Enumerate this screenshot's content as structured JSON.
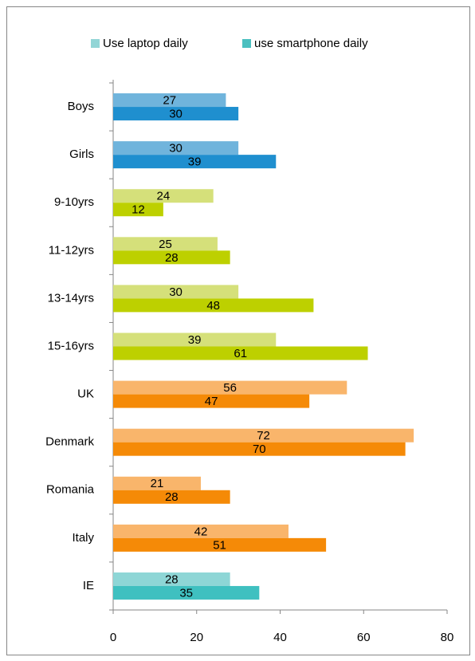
{
  "chart_data": {
    "type": "bar",
    "orientation": "horizontal",
    "categories": [
      "Boys",
      "Girls",
      "9-10yrs",
      "11-12yrs",
      "13-14yrs",
      "15-16yrs",
      "UK",
      "Denmark",
      "Romania",
      "Italy",
      "IE"
    ],
    "series": [
      {
        "name": "Use laptop daily",
        "color": "#92d5d6",
        "colors": [
          "#70b4dc",
          "#70b4dc",
          "#d5e07a",
          "#d5e07a",
          "#d5e07a",
          "#d5e07a",
          "#f9b56b",
          "#f9b56b",
          "#f9b56b",
          "#f9b56b",
          "#8ed6d6"
        ],
        "values": [
          27,
          30,
          24,
          25,
          30,
          39,
          56,
          72,
          21,
          42,
          28
        ]
      },
      {
        "name": "use smartphone daily",
        "color": "#4bc0c0",
        "colors": [
          "#1f8fcf",
          "#1f8fcf",
          "#bdd000",
          "#bdd000",
          "#bdd000",
          "#bdd000",
          "#f58a07",
          "#f58a07",
          "#f58a07",
          "#f58a07",
          "#3fc0c0"
        ],
        "values": [
          30,
          39,
          12,
          28,
          48,
          61,
          47,
          70,
          28,
          51,
          35
        ]
      }
    ],
    "xlim": [
      0,
      80
    ],
    "xticks": [
      0,
      20,
      40,
      60,
      80
    ],
    "grid": false,
    "legend": "top"
  }
}
